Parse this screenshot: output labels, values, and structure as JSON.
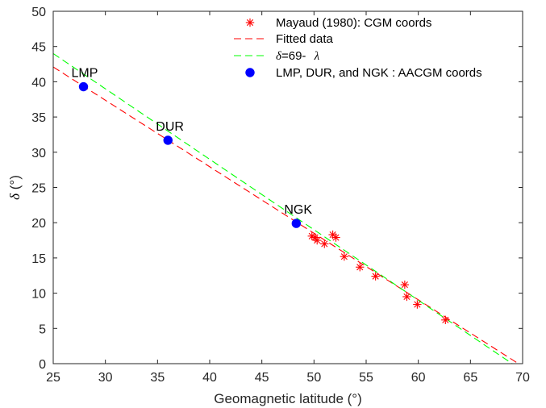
{
  "chart_data": {
    "type": "scatter",
    "xlabel": "Geomagnetic latitude (°)",
    "ylabel_symbol": "δ",
    "ylabel_unit": " (°)",
    "xlim": [
      25,
      70
    ],
    "ylim": [
      0,
      50
    ],
    "xticks": [
      25,
      30,
      35,
      40,
      45,
      50,
      55,
      60,
      65,
      70
    ],
    "yticks": [
      0,
      5,
      10,
      15,
      20,
      25,
      30,
      35,
      40,
      45,
      50
    ],
    "grid": false,
    "legend_position": "top-right",
    "series": [
      {
        "name": "Mayaud (1980): CGM coords",
        "kind": "scatter",
        "marker": "asterisk",
        "color": "#ff0000",
        "points": [
          [
            49.8,
            18.1
          ],
          [
            50.1,
            17.9
          ],
          [
            50.3,
            17.5
          ],
          [
            51.0,
            17.0
          ],
          [
            51.8,
            18.3
          ],
          [
            52.1,
            17.9
          ],
          [
            52.9,
            15.2
          ],
          [
            54.4,
            13.7
          ],
          [
            55.9,
            12.4
          ],
          [
            58.7,
            11.2
          ],
          [
            58.9,
            9.5
          ],
          [
            59.9,
            8.4
          ],
          [
            62.6,
            6.2
          ]
        ]
      },
      {
        "name": "Fitted data",
        "kind": "line",
        "dash": "long",
        "color": "#ff0000",
        "points": [
          [
            25,
            42.1
          ],
          [
            69.6,
            0
          ]
        ]
      },
      {
        "legend_parts": [
          "δ",
          "=69-  ",
          "λ"
        ],
        "kind": "line",
        "dash": "long",
        "color": "#00ff00",
        "points": [
          [
            25,
            44
          ],
          [
            69,
            0
          ]
        ]
      },
      {
        "name": "LMP, DUR, and NGK : AACGM coords",
        "kind": "scatter",
        "marker": "circle",
        "color": "#0000ff",
        "points": [
          {
            "label": "LMP",
            "x": 27.9,
            "y": 39.3
          },
          {
            "label": "DUR",
            "x": 36.0,
            "y": 31.7
          },
          {
            "label": "NGK",
            "x": 48.3,
            "y": 19.9
          }
        ]
      }
    ]
  }
}
